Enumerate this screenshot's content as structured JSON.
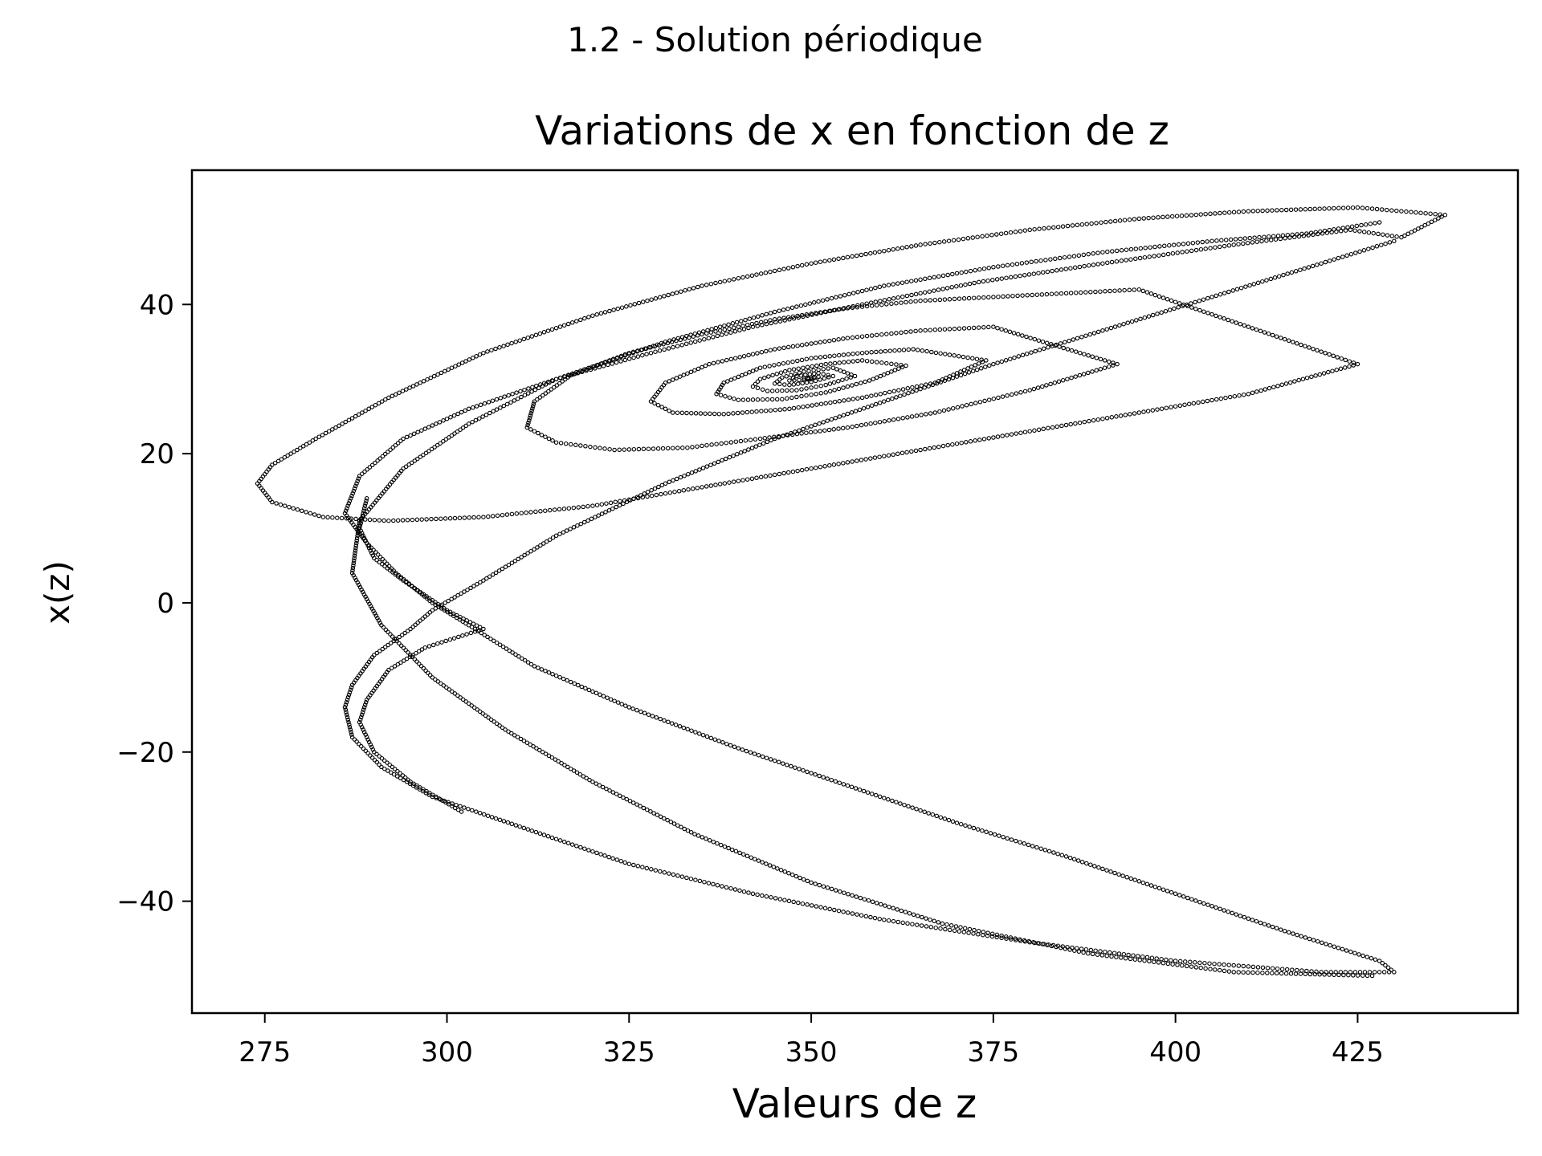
{
  "chart_data": {
    "type": "scatter",
    "suptitle": "1.2 - Solution périodique",
    "title": "Variations de x en fonction de z",
    "xlabel": "Valeurs de z",
    "ylabel": "x(z)",
    "xlim": [
      265,
      447
    ],
    "ylim": [
      -55,
      58
    ],
    "xticks": [
      275,
      300,
      325,
      350,
      375,
      400,
      425
    ],
    "yticks": [
      40,
      20,
      0,
      -20,
      -40
    ],
    "ytick_labels": [
      "40",
      "20",
      "0",
      "−20",
      "−40"
    ],
    "grid": false,
    "legend": "none",
    "marker_color": "#000000",
    "marker": "hollow-circle",
    "series": [
      {
        "values": [
          [
            428,
            51
          ],
          [
            418,
            49.5
          ],
          [
            405,
            48.5
          ],
          [
            390,
            47
          ],
          [
            375,
            45
          ],
          [
            360,
            42.5
          ],
          [
            345,
            39
          ],
          [
            330,
            35
          ],
          [
            315,
            30
          ],
          [
            303,
            24
          ],
          [
            294,
            18
          ],
          [
            288,
            11
          ],
          [
            287,
            4
          ],
          [
            291,
            -3
          ],
          [
            298,
            -10
          ],
          [
            308,
            -17
          ],
          [
            320,
            -24
          ],
          [
            334,
            -31
          ],
          [
            350,
            -37.5
          ],
          [
            368,
            -43
          ],
          [
            388,
            -47
          ],
          [
            408,
            -49.5
          ],
          [
            427,
            -50
          ],
          [
            430,
            48.5
          ],
          [
            420,
            45.5
          ],
          [
            405,
            41
          ],
          [
            390,
            36.5
          ],
          [
            375,
            32
          ],
          [
            360,
            27
          ],
          [
            345,
            22
          ],
          [
            330,
            16
          ],
          [
            315,
            9
          ],
          [
            305,
            3
          ],
          [
            298,
            -1
          ],
          [
            295,
            -3.5
          ],
          [
            290,
            -7
          ],
          [
            287,
            -11
          ],
          [
            286,
            -14
          ],
          [
            287,
            -18
          ],
          [
            291,
            -22
          ],
          [
            298,
            -26
          ],
          [
            310,
            -30
          ],
          [
            325,
            -35
          ],
          [
            342,
            -39
          ],
          [
            360,
            -42.5
          ],
          [
            380,
            -45.5
          ],
          [
            400,
            -48
          ],
          [
            420,
            -49.5
          ],
          [
            430,
            -49.5
          ],
          [
            428,
            -48
          ],
          [
            415,
            -44
          ],
          [
            400,
            -39
          ],
          [
            385,
            -34
          ],
          [
            370,
            -29.5
          ],
          [
            355,
            -24.5
          ],
          [
            340,
            -19.5
          ],
          [
            325,
            -14
          ],
          [
            312,
            -8.5
          ],
          [
            303,
            -3
          ],
          [
            298,
            0
          ],
          [
            293,
            4
          ],
          [
            289,
            8
          ],
          [
            286,
            12
          ],
          [
            288,
            17
          ],
          [
            294,
            22
          ],
          [
            303,
            26
          ],
          [
            315,
            30
          ],
          [
            328,
            33.5
          ],
          [
            342,
            37
          ],
          [
            357,
            40
          ],
          [
            373,
            43
          ],
          [
            390,
            45.5
          ],
          [
            408,
            48
          ],
          [
            424,
            50
          ],
          [
            431,
            49
          ],
          [
            437,
            52
          ],
          [
            425,
            53
          ],
          [
            410,
            52.5
          ],
          [
            395,
            51.5
          ],
          [
            380,
            50
          ],
          [
            365,
            48
          ],
          [
            350,
            45.5
          ],
          [
            335,
            42.5
          ],
          [
            320,
            38.5
          ],
          [
            305,
            33.5
          ],
          [
            292,
            27.5
          ],
          [
            282,
            22
          ],
          [
            276,
            18.5
          ],
          [
            274,
            16
          ],
          [
            276,
            13.5
          ],
          [
            283,
            11.5
          ],
          [
            292,
            11
          ],
          [
            305,
            11.5
          ],
          [
            320,
            13
          ],
          [
            335,
            15.5
          ],
          [
            350,
            18
          ],
          [
            365,
            20.5
          ],
          [
            380,
            23
          ],
          [
            395,
            25.5
          ],
          [
            410,
            28
          ],
          [
            425,
            32
          ],
          [
            395,
            42
          ],
          [
            385,
            41.5
          ],
          [
            375,
            41
          ],
          [
            365,
            40.5
          ],
          [
            355,
            39.5
          ],
          [
            345,
            38
          ],
          [
            335,
            36
          ],
          [
            325,
            33.5
          ],
          [
            317,
            30.5
          ],
          [
            312,
            27
          ],
          [
            311,
            23.5
          ],
          [
            315,
            21.5
          ],
          [
            323,
            20.5
          ],
          [
            333,
            20.8
          ],
          [
            343,
            22
          ],
          [
            355,
            23.5
          ],
          [
            367,
            25.5
          ],
          [
            380,
            28.5
          ],
          [
            392,
            32
          ],
          [
            375,
            37
          ],
          [
            365,
            36.5
          ],
          [
            355,
            35.5
          ],
          [
            345,
            34
          ],
          [
            336,
            32
          ],
          [
            330,
            29.5
          ],
          [
            328,
            27
          ],
          [
            331,
            25.5
          ],
          [
            338,
            25.3
          ],
          [
            347,
            26
          ],
          [
            357,
            27.5
          ],
          [
            367,
            29.5
          ],
          [
            374,
            32.5
          ],
          [
            364,
            34
          ],
          [
            357,
            33.5
          ],
          [
            350,
            32.8
          ],
          [
            343,
            31.5
          ],
          [
            338,
            29.5
          ],
          [
            337,
            28
          ],
          [
            340,
            27.2
          ],
          [
            346,
            27.3
          ],
          [
            352,
            28.2
          ],
          [
            358,
            29.8
          ],
          [
            363,
            31.8
          ],
          [
            357,
            32.5
          ],
          [
            352,
            32
          ],
          [
            347,
            31.2
          ],
          [
            343,
            30
          ],
          [
            342,
            29
          ],
          [
            344,
            28.4
          ],
          [
            348,
            28.5
          ],
          [
            352,
            29.2
          ],
          [
            356,
            30.4
          ],
          [
            353,
            31.5
          ],
          [
            349,
            31
          ],
          [
            346,
            30.2
          ],
          [
            345,
            29.4
          ],
          [
            347,
            29.2
          ],
          [
            350,
            29.6
          ],
          [
            353,
            30.4
          ],
          [
            351,
            30.8
          ],
          [
            348,
            30.4
          ],
          [
            347,
            29.8
          ],
          [
            349,
            29.9
          ],
          [
            351,
            30.3
          ],
          [
            350,
            30.2
          ],
          [
            349,
            30.1
          ],
          [
            350,
            30.0
          ],
          [
            289,
            14
          ],
          [
            288,
            10
          ],
          [
            290,
            6
          ],
          [
            294,
            3
          ],
          [
            300,
            -1
          ],
          [
            305,
            -3.5
          ],
          [
            297,
            -6
          ],
          [
            292,
            -9
          ],
          [
            289,
            -13
          ],
          [
            288,
            -16
          ],
          [
            290,
            -20
          ],
          [
            295,
            -24
          ],
          [
            302,
            -28
          ]
        ]
      }
    ]
  }
}
